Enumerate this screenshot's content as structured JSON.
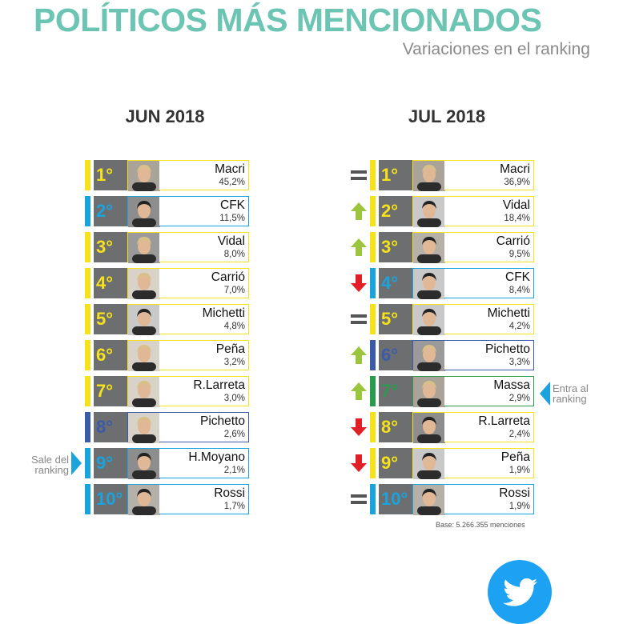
{
  "title": "POLÍTICOS MÁS MENCIONADOS",
  "subtitle": "Variaciones en el ranking",
  "colors": {
    "yellow": "#f6e21a",
    "blue": "#1aa3dd",
    "darkblue": "#3b5aa8",
    "green": "#2b9a4e",
    "up": "#9bc53d",
    "down": "#e21f26",
    "same": "#555555",
    "title": "#6cc4b3"
  },
  "chart_data": [
    {
      "type": "table",
      "title": "JUN 2018",
      "rows": [
        {
          "rank": "1°",
          "name": "Macri",
          "value": "45,2%",
          "color": "yellow"
        },
        {
          "rank": "2°",
          "name": "CFK",
          "value": "11,5%",
          "color": "blue"
        },
        {
          "rank": "3°",
          "name": "Vidal",
          "value": "8,0%",
          "color": "yellow"
        },
        {
          "rank": "4°",
          "name": "Carrió",
          "value": "7,0%",
          "color": "yellow"
        },
        {
          "rank": "5°",
          "name": "Michetti",
          "value": "4,8%",
          "color": "yellow"
        },
        {
          "rank": "6°",
          "name": "Peña",
          "value": "3,2%",
          "color": "yellow"
        },
        {
          "rank": "7°",
          "name": "R.Larreta",
          "value": "3,0%",
          "color": "yellow"
        },
        {
          "rank": "8°",
          "name": "Pichetto",
          "value": "2,6%",
          "color": "darkblue"
        },
        {
          "rank": "9°",
          "name": "H.Moyano",
          "value": "2,1%",
          "color": "blue"
        },
        {
          "rank": "10°",
          "name": "Rossi",
          "value": "1,7%",
          "color": "blue"
        }
      ]
    },
    {
      "type": "table",
      "title": "JUL 2018",
      "rows": [
        {
          "rank": "1°",
          "name": "Macri",
          "value": "36,9%",
          "color": "yellow",
          "trend": "same"
        },
        {
          "rank": "2°",
          "name": "Vidal",
          "value": "18,4%",
          "color": "yellow",
          "trend": "up"
        },
        {
          "rank": "3°",
          "name": "Carrió",
          "value": "9,5%",
          "color": "yellow",
          "trend": "up"
        },
        {
          "rank": "4°",
          "name": "CFK",
          "value": "8,4%",
          "color": "blue",
          "trend": "down"
        },
        {
          "rank": "5°",
          "name": "Michetti",
          "value": "4,2%",
          "color": "yellow",
          "trend": "same"
        },
        {
          "rank": "6°",
          "name": "Pichetto",
          "value": "3,3%",
          "color": "darkblue",
          "trend": "up"
        },
        {
          "rank": "7°",
          "name": "Massa",
          "value": "2,9%",
          "color": "green",
          "trend": "up"
        },
        {
          "rank": "8°",
          "name": "R.Larreta",
          "value": "2,4%",
          "color": "yellow",
          "trend": "down"
        },
        {
          "rank": "9°",
          "name": "Peña",
          "value": "1,9%",
          "color": "yellow",
          "trend": "down"
        },
        {
          "rank": "10°",
          "name": "Rossi",
          "value": "1,9%",
          "color": "blue",
          "trend": "same"
        }
      ]
    }
  ],
  "notes": {
    "leaves": [
      "Sale del",
      "ranking"
    ],
    "enters": [
      "Entra al",
      "ranking"
    ]
  },
  "base": "Base: 5.266.355 menciones",
  "icons": {
    "trend_up": "arrow-up-icon",
    "trend_down": "arrow-down-icon",
    "trend_same": "equals-icon",
    "social": "twitter-icon"
  }
}
